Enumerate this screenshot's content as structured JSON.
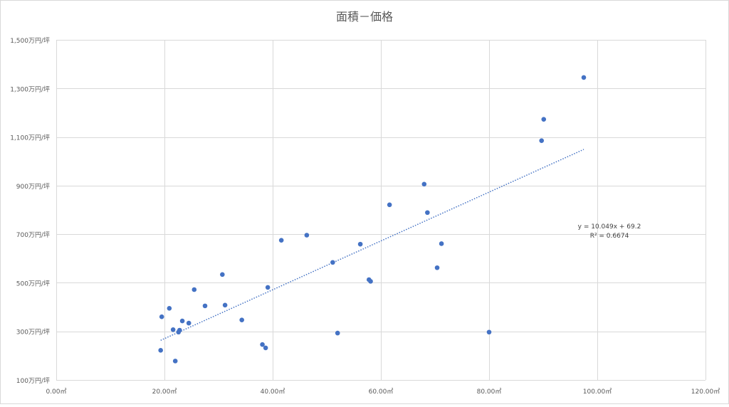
{
  "chart_data": {
    "type": "scatter",
    "title": "面積－価格",
    "xlabel": "",
    "ylabel": "",
    "xlim": [
      0,
      120
    ],
    "ylim": [
      100,
      1500
    ],
    "x_ticks": [
      {
        "value": 0,
        "label": "0.00㎡"
      },
      {
        "value": 20,
        "label": "20.00㎡"
      },
      {
        "value": 40,
        "label": "40.00㎡"
      },
      {
        "value": 60,
        "label": "60.00㎡"
      },
      {
        "value": 80,
        "label": "80.00㎡"
      },
      {
        "value": 100,
        "label": "100.00㎡"
      },
      {
        "value": 120,
        "label": "120.00㎡"
      }
    ],
    "y_ticks": [
      {
        "value": 100,
        "label": "100万円/坪"
      },
      {
        "value": 300,
        "label": "300万円/坪"
      },
      {
        "value": 500,
        "label": "500万円/坪"
      },
      {
        "value": 700,
        "label": "700万円/坪"
      },
      {
        "value": 900,
        "label": "900万円/坪"
      },
      {
        "value": 1100,
        "label": "1,100万円/坪"
      },
      {
        "value": 1300,
        "label": "1,300万円/坪"
      },
      {
        "value": 1500,
        "label": "1,500万円/坪"
      }
    ],
    "grid": true,
    "series": [
      {
        "color": "#4472c4",
        "points": [
          {
            "x": 19.3,
            "y": 222
          },
          {
            "x": 19.5,
            "y": 360
          },
          {
            "x": 20.9,
            "y": 395
          },
          {
            "x": 21.6,
            "y": 307
          },
          {
            "x": 22.0,
            "y": 178
          },
          {
            "x": 22.6,
            "y": 297
          },
          {
            "x": 22.8,
            "y": 305
          },
          {
            "x": 23.3,
            "y": 343
          },
          {
            "x": 24.5,
            "y": 334
          },
          {
            "x": 25.5,
            "y": 472
          },
          {
            "x": 27.5,
            "y": 405
          },
          {
            "x": 30.7,
            "y": 534
          },
          {
            "x": 31.2,
            "y": 408
          },
          {
            "x": 34.3,
            "y": 347
          },
          {
            "x": 38.1,
            "y": 246
          },
          {
            "x": 38.7,
            "y": 232
          },
          {
            "x": 39.1,
            "y": 481
          },
          {
            "x": 41.6,
            "y": 675
          },
          {
            "x": 46.3,
            "y": 696
          },
          {
            "x": 51.1,
            "y": 584
          },
          {
            "x": 52.0,
            "y": 293
          },
          {
            "x": 56.2,
            "y": 659
          },
          {
            "x": 57.8,
            "y": 513
          },
          {
            "x": 58.1,
            "y": 506
          },
          {
            "x": 61.6,
            "y": 821
          },
          {
            "x": 68.0,
            "y": 906
          },
          {
            "x": 68.6,
            "y": 789
          },
          {
            "x": 70.4,
            "y": 562
          },
          {
            "x": 71.2,
            "y": 661
          },
          {
            "x": 80.0,
            "y": 297
          },
          {
            "x": 89.7,
            "y": 1085
          },
          {
            "x": 90.1,
            "y": 1173
          },
          {
            "x": 97.5,
            "y": 1345
          }
        ]
      }
    ],
    "trendline": {
      "type": "linear",
      "slope": 10.049,
      "intercept": 69.2,
      "x_start": 19.3,
      "x_end": 97.5,
      "color": "#4472c4",
      "style": "dotted"
    },
    "annotations": {
      "equation": "y = 10.049x + 69.2",
      "r_squared": "R² = 0.6674"
    }
  }
}
